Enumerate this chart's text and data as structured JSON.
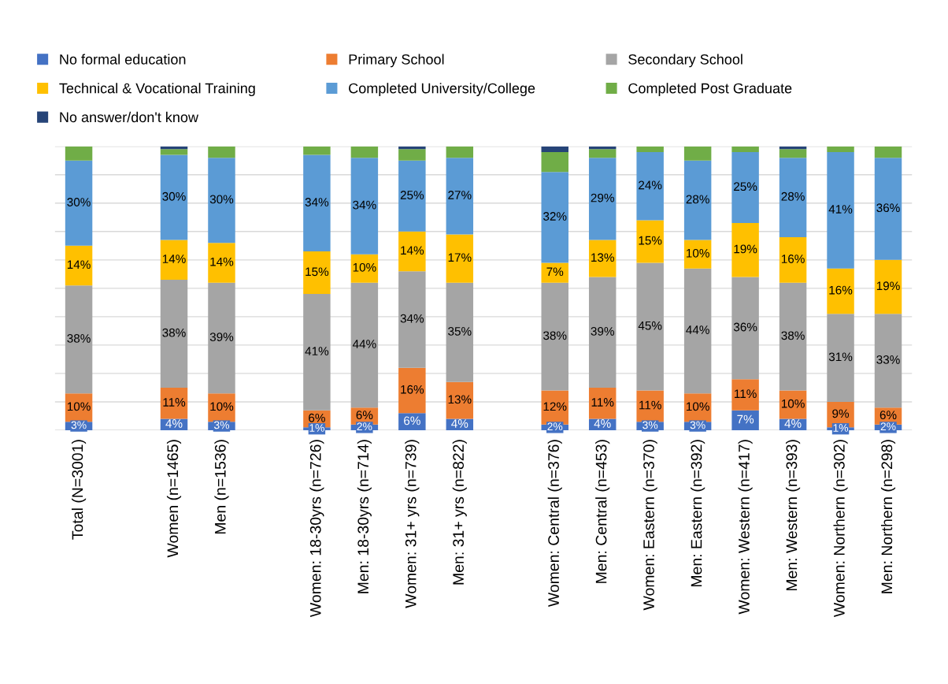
{
  "chart_data": {
    "type": "bar",
    "stacked": true,
    "categories": [
      "Total (N=3001)",
      null,
      "Women (n=1465)",
      "Men (n=1536)",
      null,
      "Women: 18-30yrs (n=726)",
      "Men: 18-30yrs (n=714)",
      "Women: 31+ yrs (n=739)",
      "Men: 31+ yrs (n=822)",
      null,
      "Women: Central (n=376)",
      "Men: Central (n=453)",
      "Women: Eastern (n=370)",
      "Men: Eastern (n=392)",
      "Women: Western (n=417)",
      "Men: Western (n=393)",
      "Women: Northern (n=302)",
      "Men: Northern (n=298)"
    ],
    "series": [
      {
        "name": "No formal education",
        "color": "#4472c4",
        "values": [
          3,
          null,
          4,
          3,
          null,
          1,
          2,
          6,
          4,
          null,
          2,
          4,
          3,
          3,
          7,
          4,
          1,
          2
        ],
        "value_labels": [
          "3%",
          null,
          "4%",
          "3%",
          null,
          "1%",
          "2%",
          "6%",
          "4%",
          null,
          "2%",
          "4%",
          "3%",
          "3%",
          "7%",
          "4%",
          "1%",
          "2%"
        ]
      },
      {
        "name": "Primary School",
        "color": "#ed7d31",
        "values": [
          10,
          null,
          11,
          10,
          null,
          6,
          6,
          16,
          13,
          null,
          12,
          11,
          11,
          10,
          11,
          10,
          9,
          6
        ],
        "value_labels": [
          "10%",
          null,
          "11%",
          "10%",
          null,
          "6%",
          "6%",
          "16%",
          "13%",
          null,
          "12%",
          "11%",
          "11%",
          "10%",
          "11%",
          "10%",
          "9%",
          "6%"
        ]
      },
      {
        "name": "Secondary School",
        "color": "#a5a5a5",
        "values": [
          38,
          null,
          38,
          39,
          null,
          41,
          44,
          34,
          35,
          null,
          38,
          39,
          45,
          44,
          36,
          38,
          31,
          33
        ],
        "value_labels": [
          "38%",
          null,
          "38%",
          "39%",
          null,
          "41%",
          "44%",
          "34%",
          "35%",
          null,
          "38%",
          "39%",
          "45%",
          "44%",
          "36%",
          "38%",
          "31%",
          "33%"
        ]
      },
      {
        "name": "Technical & Vocational Training",
        "color": "#ffc000",
        "values": [
          14,
          null,
          14,
          14,
          null,
          15,
          10,
          14,
          17,
          null,
          7,
          13,
          15,
          10,
          19,
          16,
          16,
          19
        ],
        "value_labels": [
          "14%",
          null,
          "14%",
          "14%",
          null,
          "15%",
          "10%",
          "14%",
          "17%",
          null,
          "7%",
          "13%",
          "15%",
          "10%",
          "19%",
          "16%",
          "16%",
          "19%"
        ]
      },
      {
        "name": "Completed University/College",
        "color": "#5b9bd5",
        "values": [
          30,
          null,
          30,
          30,
          null,
          34,
          34,
          25,
          27,
          null,
          32,
          29,
          24,
          28,
          25,
          28,
          41,
          36
        ],
        "value_labels": [
          "30%",
          null,
          "30%",
          "30%",
          null,
          "34%",
          "34%",
          "25%",
          "27%",
          null,
          "32%",
          "29%",
          "24%",
          "28%",
          "25%",
          "28%",
          "41%",
          "36%"
        ]
      },
      {
        "name": "Completed Post Graduate",
        "color": "#70ad47",
        "values": [
          5,
          null,
          2,
          4,
          null,
          3,
          4,
          4,
          4,
          null,
          7,
          3,
          2,
          5,
          2,
          3,
          2,
          4
        ]
      },
      {
        "name": "No answer/don't know",
        "color": "#264478",
        "values": [
          0,
          null,
          1,
          0,
          null,
          0,
          0,
          1,
          0,
          null,
          2,
          1,
          0,
          0,
          0,
          1,
          0,
          0
        ]
      }
    ],
    "ylim": [
      0,
      100
    ],
    "yticks": [
      {
        "value": 0,
        "label": null
      },
      {
        "value": 10,
        "label": null
      },
      {
        "value": 20,
        "label": null
      },
      {
        "value": 30,
        "label": null
      },
      {
        "value": 40,
        "label": null
      },
      {
        "value": 50,
        "label": null
      },
      {
        "value": 60,
        "label": null
      },
      {
        "value": 70,
        "label": null
      },
      {
        "value": 80,
        "label": null
      },
      {
        "value": 90,
        "label": null
      },
      {
        "value": 100,
        "label": null
      }
    ],
    "tick_labels": "x",
    "grid": "y",
    "legend": "top"
  }
}
